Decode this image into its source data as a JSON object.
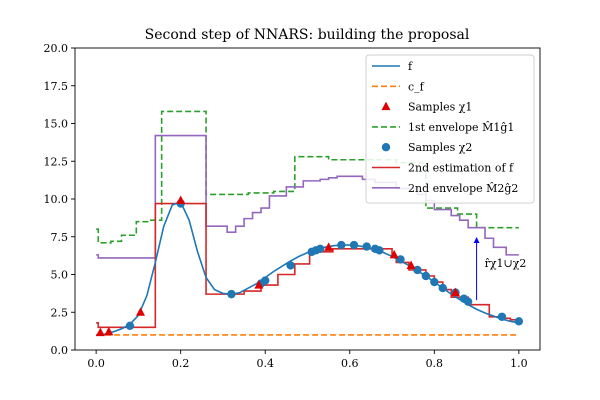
{
  "chart_data": {
    "type": "line",
    "title": "Second step of NNARS: building the proposal",
    "xlabel": "",
    "ylabel": "",
    "xlim": [
      -0.05,
      1.05
    ],
    "ylim": [
      0,
      20
    ],
    "xticks": [
      0.0,
      0.2,
      0.4,
      0.6,
      0.8,
      1.0
    ],
    "xtick_labels": [
      "0.0",
      "0.2",
      "0.4",
      "0.6",
      "0.8",
      "1.0"
    ],
    "yticks": [
      0.0,
      2.5,
      5.0,
      7.5,
      10.0,
      12.5,
      15.0,
      17.5,
      20.0
    ],
    "ytick_labels": [
      "0.0",
      "2.5",
      "5.0",
      "7.5",
      "10.0",
      "12.5",
      "15.0",
      "17.5",
      "20.0"
    ],
    "grid": false,
    "legend_position": "top-right",
    "colors": {
      "f": "#1f77b4",
      "c_f": "#ff7f0e",
      "samples1": "#e00000",
      "envelope1": "#2ca02c",
      "samples2": "#1f77b4",
      "estimation2": "#d62728",
      "envelope2": "#9467bd",
      "annotation": "#0000ff"
    },
    "series": [
      {
        "key": "f",
        "name": "f",
        "kind": "line",
        "x": [
          0.0,
          0.02,
          0.04,
          0.06,
          0.08,
          0.1,
          0.12,
          0.14,
          0.16,
          0.18,
          0.2,
          0.22,
          0.24,
          0.26,
          0.28,
          0.3,
          0.32,
          0.34,
          0.36,
          0.38,
          0.4,
          0.42,
          0.44,
          0.46,
          0.48,
          0.5,
          0.52,
          0.54,
          0.56,
          0.58,
          0.6,
          0.62,
          0.64,
          0.66,
          0.68,
          0.7,
          0.72,
          0.74,
          0.76,
          0.78,
          0.8,
          0.82,
          0.84,
          0.86,
          0.88,
          0.9,
          0.92,
          0.94,
          0.96,
          0.98,
          1.0
        ],
        "y": [
          1.0,
          1.05,
          1.2,
          1.4,
          1.7,
          2.3,
          3.6,
          5.8,
          8.2,
          9.6,
          9.8,
          8.6,
          6.5,
          4.8,
          4.0,
          3.75,
          3.7,
          3.8,
          4.1,
          4.4,
          4.8,
          5.2,
          5.55,
          5.9,
          6.2,
          6.45,
          6.65,
          6.8,
          6.9,
          6.95,
          6.95,
          6.9,
          6.8,
          6.65,
          6.45,
          6.2,
          5.9,
          5.6,
          5.25,
          4.9,
          4.5,
          4.1,
          3.7,
          3.35,
          3.0,
          2.7,
          2.45,
          2.25,
          2.05,
          1.9,
          1.8
        ]
      },
      {
        "key": "c_f",
        "name": "c_f",
        "kind": "dashed",
        "x": [
          0.0,
          1.0
        ],
        "y": [
          1.0,
          1.0
        ]
      },
      {
        "key": "samples1",
        "name": "Samples χ1",
        "kind": "triangles",
        "x": [
          0.01,
          0.03,
          0.105,
          0.2,
          0.385,
          0.55,
          0.705,
          0.745,
          0.85
        ],
        "y": [
          1.15,
          1.2,
          2.5,
          9.9,
          4.3,
          6.8,
          6.3,
          5.6,
          3.8
        ]
      },
      {
        "key": "envelope1",
        "name": "1st envelope M̂1ĝ1",
        "kind": "step-dashed",
        "x": [
          0.0,
          0.005,
          0.035,
          0.06,
          0.095,
          0.125,
          0.155,
          0.26,
          0.33,
          0.36,
          0.42,
          0.47,
          0.55,
          0.71,
          0.78,
          0.855,
          0.9,
          0.92,
          0.95,
          1.0
        ],
        "y": [
          8.0,
          7.1,
          7.2,
          7.6,
          8.5,
          8.6,
          15.8,
          10.3,
          10.3,
          10.4,
          10.5,
          12.8,
          12.6,
          12.4,
          9.4,
          9.0,
          8.1,
          8.1,
          8.1,
          8.1
        ]
      },
      {
        "key": "samples2",
        "name": "Samples χ2",
        "kind": "circles",
        "x": [
          0.08,
          0.2,
          0.32,
          0.39,
          0.4,
          0.46,
          0.51,
          0.52,
          0.53,
          0.58,
          0.61,
          0.64,
          0.66,
          0.67,
          0.72,
          0.76,
          0.78,
          0.8,
          0.82,
          0.85,
          0.87,
          0.88,
          0.96,
          1.0
        ],
        "y": [
          1.6,
          9.7,
          3.7,
          4.4,
          4.6,
          5.6,
          6.5,
          6.6,
          6.7,
          6.95,
          6.95,
          6.85,
          6.7,
          6.6,
          6.0,
          5.3,
          4.9,
          4.5,
          4.1,
          3.8,
          3.4,
          3.2,
          2.2,
          1.9
        ]
      },
      {
        "key": "estimation2",
        "name": "2nd estimation of f",
        "kind": "step",
        "x": [
          0.0,
          0.005,
          0.14,
          0.26,
          0.35,
          0.39,
          0.43,
          0.47,
          0.505,
          0.56,
          0.6,
          0.65,
          0.7,
          0.71,
          0.74,
          0.78,
          0.8,
          0.82,
          0.84,
          0.88,
          0.93,
          0.96,
          0.98,
          1.0
        ],
        "y": [
          1.8,
          1.5,
          9.7,
          3.7,
          3.9,
          4.3,
          5.0,
          5.7,
          6.5,
          6.7,
          6.7,
          6.7,
          6.2,
          5.8,
          5.3,
          4.9,
          4.5,
          4.0,
          3.5,
          3.0,
          2.2,
          2.1,
          2.0,
          1.8
        ]
      },
      {
        "key": "envelope2",
        "name": "2nd envelope M̂2ĝ2",
        "kind": "step",
        "x": [
          0.0,
          0.005,
          0.14,
          0.26,
          0.31,
          0.33,
          0.35,
          0.37,
          0.39,
          0.41,
          0.45,
          0.49,
          0.53,
          0.55,
          0.57,
          0.6,
          0.63,
          0.66,
          0.71,
          0.76,
          0.78,
          0.8,
          0.84,
          0.86,
          0.88,
          0.92,
          0.94,
          0.97,
          1.0
        ],
        "y": [
          6.3,
          6.1,
          14.2,
          8.2,
          7.8,
          8.2,
          8.7,
          9.1,
          9.4,
          10.2,
          10.8,
          11.2,
          11.3,
          11.4,
          11.5,
          11.5,
          11.3,
          11.1,
          10.7,
          10.3,
          9.9,
          9.3,
          8.9,
          8.6,
          8.1,
          7.4,
          6.8,
          6.3,
          6.3
        ]
      }
    ],
    "annotation": {
      "text": "r̂χ1∪χ2",
      "arrow_x": 0.9,
      "arrow_from_y": 3.3,
      "arrow_to_y": 7.5
    }
  }
}
